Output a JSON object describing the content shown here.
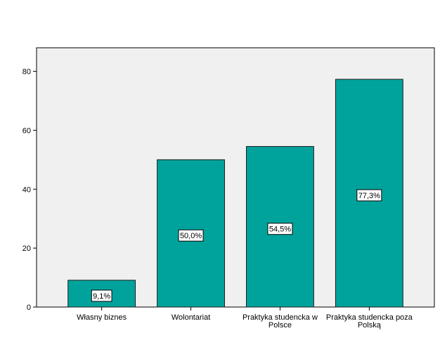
{
  "chart_data": {
    "type": "bar",
    "categories": [
      "Własny biznes",
      "Wolontariat",
      "Praktyka studencka w Polsce",
      "Praktyka studencka poza Polską"
    ],
    "category_label_lines": [
      [
        "Własny biznes"
      ],
      [
        "Wolontariat"
      ],
      [
        "Praktyka studencka w",
        "Polsce"
      ],
      [
        "Praktyka studencka poza",
        "Polską"
      ]
    ],
    "values": [
      9.1,
      50.0,
      54.5,
      77.3
    ],
    "data_labels": [
      "9,1%",
      "50,0%",
      "54,5%",
      "77,3%"
    ],
    "ylim": [
      0,
      88
    ],
    "yticks": [
      0,
      20,
      40,
      60,
      80
    ],
    "grid": false,
    "colors": {
      "bar_fill": "#00a39b",
      "bar_stroke": "#1a1a1a",
      "plot_background": "#f0f0f0",
      "page_background": "#ffffff"
    }
  }
}
